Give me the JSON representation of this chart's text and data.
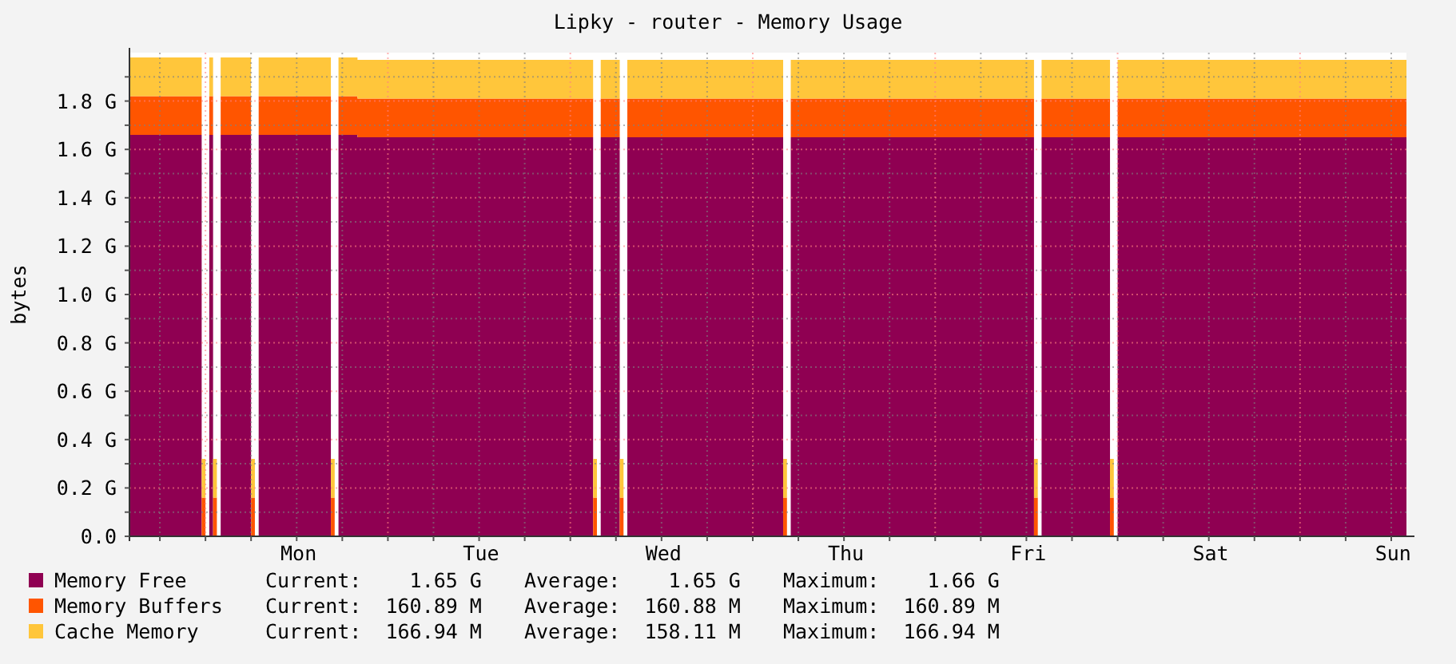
{
  "chart_data": {
    "type": "area",
    "stacked": true,
    "title": "Lipky - router - Memory Usage",
    "ylabel": "bytes",
    "categories": [
      null,
      null,
      null,
      null,
      null,
      null,
      null,
      null,
      null,
      null,
      null,
      null,
      null,
      null,
      null,
      null,
      null,
      null,
      null,
      null,
      null,
      null,
      null,
      null,
      null,
      null,
      null,
      null,
      null,
      null,
      null,
      null,
      null,
      null,
      null,
      null,
      null,
      null,
      null,
      null,
      null,
      null,
      null,
      null,
      "Mon",
      null,
      null,
      null,
      null,
      null,
      null,
      null,
      null,
      null,
      null,
      null,
      null,
      null,
      null,
      null,
      null,
      null,
      null,
      null,
      null,
      null,
      null,
      null,
      null,
      null,
      null,
      null,
      null,
      null,
      null,
      null,
      null,
      null,
      null,
      null,
      null,
      null,
      null,
      null,
      null,
      null,
      null,
      null,
      null,
      null,
      null,
      null,
      "Tue",
      null,
      null,
      null,
      null,
      null,
      null,
      null,
      null,
      null,
      null,
      null,
      null,
      null,
      null,
      null,
      null,
      null,
      null,
      null,
      null,
      null,
      null,
      null,
      null,
      null,
      null,
      null,
      null,
      null,
      null,
      null,
      null,
      null,
      null,
      null,
      null,
      null,
      null,
      null,
      null,
      null,
      null,
      null,
      null,
      null,
      null,
      null,
      "Wed",
      null,
      null,
      null,
      null,
      null,
      null,
      null,
      null,
      null,
      null,
      null,
      null,
      null,
      null,
      null,
      null,
      null,
      null,
      null,
      null,
      null,
      null,
      null,
      null,
      null,
      null,
      null,
      null,
      null,
      null,
      null,
      null,
      null,
      null,
      null,
      null,
      null,
      null,
      null,
      null,
      null,
      null,
      null,
      null,
      null,
      null,
      null,
      "Thu",
      null,
      null,
      null,
      null,
      null,
      null,
      null,
      null,
      null,
      null,
      null,
      null,
      null,
      null,
      null,
      null,
      null,
      null,
      null,
      null,
      null,
      null,
      null,
      null,
      null,
      null,
      null,
      null,
      null,
      null,
      null,
      null,
      null,
      null,
      null,
      null,
      null,
      null,
      null,
      null,
      null,
      null,
      null,
      null,
      null,
      null,
      null,
      "Fri",
      null,
      null,
      null,
      null,
      null,
      null,
      null,
      null,
      null,
      null,
      null,
      null,
      null,
      null,
      null,
      null,
      null,
      null,
      null,
      null,
      null,
      null,
      null,
      null,
      null,
      null,
      null,
      null,
      null,
      null,
      null,
      null,
      null,
      null,
      null,
      null,
      null,
      null,
      null,
      null,
      null,
      null,
      null,
      null,
      null,
      null,
      null,
      "Sat",
      null,
      null,
      null,
      null,
      null,
      null,
      null,
      null,
      null,
      null,
      null,
      null,
      null,
      null,
      null,
      null,
      null,
      null,
      null,
      null,
      null,
      null,
      null,
      null,
      null,
      null,
      null,
      null,
      null,
      null,
      null,
      null,
      null,
      null,
      null,
      null,
      null,
      null,
      null,
      null,
      null,
      null,
      null,
      null,
      null,
      null,
      null,
      "Sun",
      null,
      null,
      null
    ],
    "series": [
      {
        "name": "Memory Free",
        "color": "#8f0052",
        "values": [
          1.66,
          1.66,
          1.66,
          1.66,
          1.66,
          1.66,
          1.66,
          1.66,
          1.66,
          1.66,
          1.66,
          1.66,
          1.66,
          1.66,
          1.66,
          1.66,
          1.66,
          1.66,
          1.66,
          0,
          null,
          1.66,
          0,
          null,
          1.66,
          1.66,
          1.66,
          1.66,
          1.66,
          1.66,
          1.66,
          1.66,
          0,
          null,
          1.66,
          1.66,
          1.66,
          1.66,
          1.66,
          1.66,
          1.66,
          1.66,
          1.66,
          1.66,
          1.66,
          1.66,
          1.66,
          1.66,
          1.66,
          1.66,
          1.66,
          1.66,
          1.66,
          0,
          null,
          1.66,
          1.66,
          1.66,
          1.66,
          1.66,
          1.65,
          1.65,
          1.65,
          1.65,
          1.65,
          1.65,
          1.65,
          1.65,
          1.65,
          1.65,
          1.65,
          1.65,
          1.65,
          1.65,
          1.65,
          1.65,
          1.65,
          1.65,
          1.65,
          1.65,
          1.65,
          1.65,
          1.65,
          1.65,
          1.65,
          1.65,
          1.65,
          1.65,
          1.65,
          1.65,
          1.65,
          1.65,
          1.65,
          1.65,
          1.65,
          1.65,
          1.65,
          1.65,
          1.65,
          1.65,
          1.65,
          1.65,
          1.65,
          1.65,
          1.65,
          1.65,
          1.65,
          1.65,
          1.65,
          1.65,
          1.65,
          1.65,
          1.65,
          1.65,
          1.65,
          1.65,
          1.65,
          1.65,
          1.65,
          1.65,
          1.65,
          1.65,
          0,
          null,
          1.65,
          1.65,
          1.65,
          1.65,
          1.65,
          0,
          null,
          1.65,
          1.65,
          1.65,
          1.65,
          1.65,
          1.65,
          1.65,
          1.65,
          1.65,
          1.65,
          1.65,
          1.65,
          1.65,
          1.65,
          1.65,
          1.65,
          1.65,
          1.65,
          1.65,
          1.65,
          1.65,
          1.65,
          1.65,
          1.65,
          1.65,
          1.65,
          1.65,
          1.65,
          1.65,
          1.65,
          1.65,
          1.65,
          1.65,
          1.65,
          1.65,
          1.65,
          1.65,
          1.65,
          1.65,
          1.65,
          1.65,
          0,
          null,
          1.65,
          1.65,
          1.65,
          1.65,
          1.65,
          1.65,
          1.65,
          1.65,
          1.65,
          1.65,
          1.65,
          1.65,
          1.65,
          1.65,
          1.65,
          1.65,
          1.65,
          1.65,
          1.65,
          1.65,
          1.65,
          1.65,
          1.65,
          1.65,
          1.65,
          1.65,
          1.65,
          1.65,
          1.65,
          1.65,
          1.65,
          1.65,
          1.65,
          1.65,
          1.65,
          1.65,
          1.65,
          1.65,
          1.65,
          1.65,
          1.65,
          1.65,
          1.65,
          1.65,
          1.65,
          1.65,
          1.65,
          1.65,
          1.65,
          1.65,
          1.65,
          1.65,
          1.65,
          1.65,
          1.65,
          1.65,
          1.65,
          1.65,
          1.65,
          1.65,
          1.65,
          1.65,
          1.65,
          1.65,
          0,
          null,
          1.65,
          1.65,
          1.65,
          1.65,
          1.65,
          1.65,
          1.65,
          1.65,
          1.65,
          1.65,
          1.65,
          1.65,
          1.65,
          1.65,
          1.65,
          1.65,
          1.65,
          1.65,
          0,
          null,
          1.65,
          1.65,
          1.65,
          1.65,
          1.65,
          1.65,
          1.65,
          1.65,
          1.65,
          1.65,
          1.65,
          1.65,
          1.65,
          1.65,
          1.65,
          1.65,
          1.65,
          1.65,
          1.65,
          1.65,
          1.65,
          1.65,
          1.65,
          1.65,
          1.65,
          1.65,
          1.65,
          1.65,
          1.65,
          1.65,
          1.65,
          1.65,
          1.65,
          1.65,
          1.65,
          1.65,
          1.65,
          1.65,
          1.65,
          1.65,
          1.65,
          1.65,
          1.65,
          1.65,
          1.65,
          1.65,
          1.65,
          1.65,
          1.65,
          1.65,
          1.65,
          1.65,
          1.65,
          1.65,
          1.65,
          1.65,
          1.65,
          1.65,
          1.65,
          1.65,
          1.65,
          1.65,
          1.65,
          1.65,
          1.65,
          1.65,
          1.65,
          1.65,
          1.65,
          1.65,
          1.65,
          1.65,
          1.65,
          1.65,
          1.65,
          1.65
        ]
      },
      {
        "name": "Memory Buffers",
        "color": "#ff5500",
        "values": [
          0.16,
          0.16,
          0.16,
          0.16,
          0.16,
          0.16,
          0.16,
          0.16,
          0.16,
          0.16,
          0.16,
          0.16,
          0.16,
          0.16,
          0.16,
          0.16,
          0.16,
          0.16,
          0.16,
          0.16,
          null,
          0.16,
          0.16,
          null,
          0.16,
          0.16,
          0.16,
          0.16,
          0.16,
          0.16,
          0.16,
          0.16,
          0.16,
          null,
          0.16,
          0.16,
          0.16,
          0.16,
          0.16,
          0.16,
          0.16,
          0.16,
          0.16,
          0.16,
          0.16,
          0.16,
          0.16,
          0.16,
          0.16,
          0.16,
          0.16,
          0.16,
          0.16,
          0.16,
          null,
          0.16,
          0.16,
          0.16,
          0.16,
          0.16,
          0.16,
          0.16,
          0.16,
          0.16,
          0.16,
          0.16,
          0.16,
          0.16,
          0.16,
          0.16,
          0.16,
          0.16,
          0.16,
          0.16,
          0.16,
          0.16,
          0.16,
          0.16,
          0.16,
          0.16,
          0.16,
          0.16,
          0.16,
          0.16,
          0.16,
          0.16,
          0.16,
          0.16,
          0.16,
          0.16,
          0.16,
          0.16,
          0.16,
          0.16,
          0.16,
          0.16,
          0.16,
          0.16,
          0.16,
          0.16,
          0.16,
          0.16,
          0.16,
          0.16,
          0.16,
          0.16,
          0.16,
          0.16,
          0.16,
          0.16,
          0.16,
          0.16,
          0.16,
          0.16,
          0.16,
          0.16,
          0.16,
          0.16,
          0.16,
          0.16,
          0.16,
          0.16,
          0.16,
          null,
          0.16,
          0.16,
          0.16,
          0.16,
          0.16,
          0.16,
          null,
          0.16,
          0.16,
          0.16,
          0.16,
          0.16,
          0.16,
          0.16,
          0.16,
          0.16,
          0.16,
          0.16,
          0.16,
          0.16,
          0.16,
          0.16,
          0.16,
          0.16,
          0.16,
          0.16,
          0.16,
          0.16,
          0.16,
          0.16,
          0.16,
          0.16,
          0.16,
          0.16,
          0.16,
          0.16,
          0.16,
          0.16,
          0.16,
          0.16,
          0.16,
          0.16,
          0.16,
          0.16,
          0.16,
          0.16,
          0.16,
          0.16,
          0.16,
          null,
          0.16,
          0.16,
          0.16,
          0.16,
          0.16,
          0.16,
          0.16,
          0.16,
          0.16,
          0.16,
          0.16,
          0.16,
          0.16,
          0.16,
          0.16,
          0.16,
          0.16,
          0.16,
          0.16,
          0.16,
          0.16,
          0.16,
          0.16,
          0.16,
          0.16,
          0.16,
          0.16,
          0.16,
          0.16,
          0.16,
          0.16,
          0.16,
          0.16,
          0.16,
          0.16,
          0.16,
          0.16,
          0.16,
          0.16,
          0.16,
          0.16,
          0.16,
          0.16,
          0.16,
          0.16,
          0.16,
          0.16,
          0.16,
          0.16,
          0.16,
          0.16,
          0.16,
          0.16,
          0.16,
          0.16,
          0.16,
          0.16,
          0.16,
          0.16,
          0.16,
          0.16,
          0.16,
          0.16,
          0.16,
          0.16,
          null,
          0.16,
          0.16,
          0.16,
          0.16,
          0.16,
          0.16,
          0.16,
          0.16,
          0.16,
          0.16,
          0.16,
          0.16,
          0.16,
          0.16,
          0.16,
          0.16,
          0.16,
          0.16,
          0.16,
          null,
          0.16,
          0.16,
          0.16,
          0.16,
          0.16,
          0.16,
          0.16,
          0.16,
          0.16,
          0.16,
          0.16,
          0.16,
          0.16,
          0.16,
          0.16,
          0.16,
          0.16,
          0.16,
          0.16,
          0.16,
          0.16,
          0.16,
          0.16,
          0.16,
          0.16,
          0.16,
          0.16,
          0.16,
          0.16,
          0.16,
          0.16,
          0.16,
          0.16,
          0.16,
          0.16,
          0.16,
          0.16,
          0.16,
          0.16,
          0.16,
          0.16,
          0.16,
          0.16,
          0.16,
          0.16,
          0.16,
          0.16,
          0.16,
          0.16,
          0.16,
          0.16,
          0.16,
          0.16,
          0.16,
          0.16,
          0.16,
          0.16,
          0.16,
          0.16,
          0.16,
          0.16,
          0.16,
          0.16,
          0.16,
          0.16,
          0.16,
          0.16,
          0.16,
          0.16,
          0.16,
          0.16,
          0.16,
          0.16,
          0.16,
          0.16,
          0.16
        ]
      },
      {
        "name": "Cache Memory",
        "color": "#ffc63b",
        "values": [
          0.16,
          0.16,
          0.16,
          0.16,
          0.16,
          0.16,
          0.16,
          0.16,
          0.16,
          0.16,
          0.16,
          0.16,
          0.16,
          0.16,
          0.16,
          0.16,
          0.16,
          0.16,
          0.16,
          0.16,
          null,
          0.16,
          0.16,
          null,
          0.16,
          0.16,
          0.16,
          0.16,
          0.16,
          0.16,
          0.16,
          0.16,
          0.16,
          null,
          0.16,
          0.16,
          0.16,
          0.16,
          0.16,
          0.16,
          0.16,
          0.16,
          0.16,
          0.16,
          0.16,
          0.16,
          0.16,
          0.16,
          0.16,
          0.16,
          0.16,
          0.16,
          0.16,
          0.16,
          null,
          0.16,
          0.16,
          0.16,
          0.16,
          0.16,
          0.16,
          0.16,
          0.16,
          0.16,
          0.16,
          0.16,
          0.16,
          0.16,
          0.16,
          0.16,
          0.16,
          0.16,
          0.16,
          0.16,
          0.16,
          0.16,
          0.16,
          0.16,
          0.16,
          0.16,
          0.16,
          0.16,
          0.16,
          0.16,
          0.16,
          0.16,
          0.16,
          0.16,
          0.16,
          0.16,
          0.16,
          0.16,
          0.16,
          0.16,
          0.16,
          0.16,
          0.16,
          0.16,
          0.16,
          0.16,
          0.16,
          0.16,
          0.16,
          0.16,
          0.16,
          0.16,
          0.16,
          0.16,
          0.16,
          0.16,
          0.16,
          0.16,
          0.16,
          0.16,
          0.16,
          0.16,
          0.16,
          0.16,
          0.16,
          0.16,
          0.16,
          0.16,
          0.16,
          null,
          0.16,
          0.16,
          0.16,
          0.16,
          0.16,
          0.16,
          null,
          0.16,
          0.16,
          0.16,
          0.16,
          0.16,
          0.16,
          0.16,
          0.16,
          0.16,
          0.16,
          0.16,
          0.16,
          0.16,
          0.16,
          0.16,
          0.16,
          0.16,
          0.16,
          0.16,
          0.16,
          0.16,
          0.16,
          0.16,
          0.16,
          0.16,
          0.16,
          0.16,
          0.16,
          0.16,
          0.16,
          0.16,
          0.16,
          0.16,
          0.16,
          0.16,
          0.16,
          0.16,
          0.16,
          0.16,
          0.16,
          0.16,
          0.16,
          null,
          0.16,
          0.16,
          0.16,
          0.16,
          0.16,
          0.16,
          0.16,
          0.16,
          0.16,
          0.16,
          0.16,
          0.16,
          0.16,
          0.16,
          0.16,
          0.16,
          0.16,
          0.16,
          0.16,
          0.16,
          0.16,
          0.16,
          0.16,
          0.16,
          0.16,
          0.16,
          0.16,
          0.16,
          0.16,
          0.16,
          0.16,
          0.16,
          0.16,
          0.16,
          0.16,
          0.16,
          0.16,
          0.16,
          0.16,
          0.16,
          0.16,
          0.16,
          0.16,
          0.16,
          0.16,
          0.16,
          0.16,
          0.16,
          0.16,
          0.16,
          0.16,
          0.16,
          0.16,
          0.16,
          0.16,
          0.16,
          0.16,
          0.16,
          0.16,
          0.16,
          0.16,
          0.16,
          0.16,
          0.16,
          0.16,
          null,
          0.16,
          0.16,
          0.16,
          0.16,
          0.16,
          0.16,
          0.16,
          0.16,
          0.16,
          0.16,
          0.16,
          0.16,
          0.16,
          0.16,
          0.16,
          0.16,
          0.16,
          0.16,
          0.16,
          null,
          0.16,
          0.16,
          0.16,
          0.16,
          0.16,
          0.16,
          0.16,
          0.16,
          0.16,
          0.16,
          0.16,
          0.16,
          0.16,
          0.16,
          0.16,
          0.16,
          0.16,
          0.16,
          0.16,
          0.16,
          0.16,
          0.16,
          0.16,
          0.16,
          0.16,
          0.16,
          0.16,
          0.16,
          0.16,
          0.16,
          0.16,
          0.16,
          0.16,
          0.16,
          0.16,
          0.16,
          0.16,
          0.16,
          0.16,
          0.16,
          0.16,
          0.16,
          0.16,
          0.16,
          0.16,
          0.16,
          0.16,
          0.16,
          0.16,
          0.16,
          0.16,
          0.16,
          0.16,
          0.16,
          0.16,
          0.16,
          0.16,
          0.16,
          0.16,
          0.16,
          0.16,
          0.16,
          0.16,
          0.16,
          0.16,
          0.16,
          0.16,
          0.16,
          0.16,
          0.16,
          0.16,
          0.16,
          0.16,
          0.16,
          0.16,
          0.16
        ]
      }
    ],
    "ylim": [
      0,
      2.0
    ],
    "yticks": [
      {
        "value": 0,
        "label": "0.0"
      },
      {
        "value": 0.1,
        "label": null
      },
      {
        "value": 0.2,
        "label": "0.2 G"
      },
      {
        "value": 0.3,
        "label": null
      },
      {
        "value": 0.4,
        "label": "0.4 G"
      },
      {
        "value": 0.5,
        "label": null
      },
      {
        "value": 0.6,
        "label": "0.6 G"
      },
      {
        "value": 0.7,
        "label": null
      },
      {
        "value": 0.8,
        "label": "0.8 G"
      },
      {
        "value": 0.9,
        "label": null
      },
      {
        "value": 1.0,
        "label": "1.0 G"
      },
      {
        "value": 1.1,
        "label": null
      },
      {
        "value": 1.2,
        "label": "1.2 G"
      },
      {
        "value": 1.3,
        "label": null
      },
      {
        "value": 1.4,
        "label": "1.4 G"
      },
      {
        "value": 1.5,
        "label": null
      },
      {
        "value": 1.6,
        "label": "1.6 G"
      },
      {
        "value": 1.7,
        "label": null
      },
      {
        "value": 1.8,
        "label": "1.8 G"
      },
      {
        "value": 1.9,
        "label": null
      }
    ],
    "grid": true,
    "legend": "bottom",
    "annotations": [
      "Current:    1.65 G",
      "Average:    1.65 G",
      "Maximum:    1.66 G",
      "Current:  160.89 M",
      "Average:  160.88 M",
      "Maximum:  160.89 M",
      "Current:  166.94 M",
      "Average:  158.11 M",
      "Maximum:  166.94 M"
    ]
  }
}
